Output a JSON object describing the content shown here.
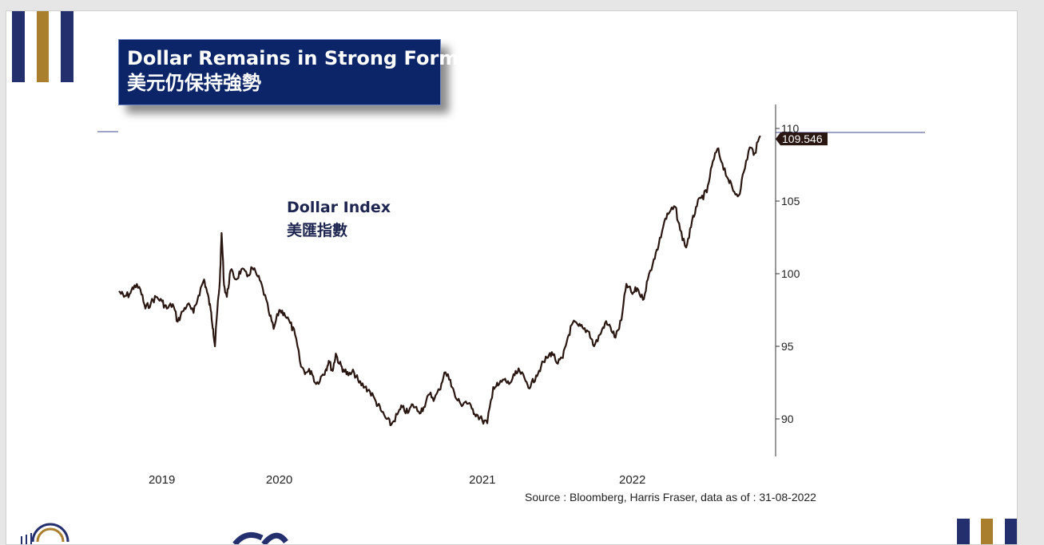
{
  "colors": {
    "navy": "#24306e",
    "gold": "#a97f2e",
    "title_bg": "#0b2568",
    "line": "#2b1712",
    "label_bg": "#2b1712",
    "text_dark": "#1d2550"
  },
  "title": {
    "en": "Dollar Remains in Strong Form",
    "zh": "美元仍保持強勢"
  },
  "source": "Source : Bloomberg, Harris Fraser, data as of : 31-08-2022",
  "logo_icon": "arch-logo-icon",
  "chart_data": {
    "type": "line",
    "series": [
      {
        "name": "Dollar Index 美匯指數",
        "label_en": "Dollar Index",
        "label_zh": "美匯指數",
        "last_value_label": "109.546",
        "points": [
          [
            "2018-09-01",
            98.8
          ],
          [
            "2018-09-15",
            98.4
          ],
          [
            "2018-10-01",
            98.6
          ],
          [
            "2018-10-15",
            99.2
          ],
          [
            "2018-11-01",
            98.9
          ],
          [
            "2018-11-15",
            97.6
          ],
          [
            "2018-12-01",
            98.0
          ],
          [
            "2018-12-15",
            98.4
          ],
          [
            "2019-01-01",
            98.1
          ],
          [
            "2019-01-15",
            97.6
          ],
          [
            "2019-02-01",
            97.9
          ],
          [
            "2019-02-15",
            96.7
          ],
          [
            "2019-03-01",
            97.4
          ],
          [
            "2019-03-15",
            97.9
          ],
          [
            "2019-04-01",
            97.3
          ],
          [
            "2019-04-15",
            98.5
          ],
          [
            "2019-05-01",
            99.6
          ],
          [
            "2019-05-10",
            98.7
          ],
          [
            "2019-05-20",
            97.5
          ],
          [
            "2019-05-27",
            96.2
          ],
          [
            "2019-06-01",
            95.0
          ],
          [
            "2019-06-08",
            97.6
          ],
          [
            "2019-06-15",
            99.5
          ],
          [
            "2019-06-20",
            102.8
          ],
          [
            "2019-06-27",
            99.2
          ],
          [
            "2019-07-05",
            98.4
          ],
          [
            "2019-07-15",
            100.2
          ],
          [
            "2019-08-01",
            99.6
          ],
          [
            "2019-08-15",
            100.3
          ],
          [
            "2019-09-01",
            99.8
          ],
          [
            "2019-09-15",
            100.4
          ],
          [
            "2019-10-01",
            99.8
          ],
          [
            "2019-10-15",
            99.0
          ],
          [
            "2019-11-01",
            97.4
          ],
          [
            "2019-11-15",
            96.2
          ],
          [
            "2019-12-01",
            97.5
          ],
          [
            "2019-12-15",
            97.3
          ],
          [
            "2020-01-01",
            96.6
          ],
          [
            "2020-01-15",
            95.8
          ],
          [
            "2020-02-01",
            93.6
          ],
          [
            "2020-02-15",
            93.2
          ],
          [
            "2020-03-01",
            93.3
          ],
          [
            "2020-03-15",
            92.4
          ],
          [
            "2020-04-01",
            93.0
          ],
          [
            "2020-04-10",
            93.3
          ],
          [
            "2020-04-20",
            94.0
          ],
          [
            "2020-05-01",
            93.3
          ],
          [
            "2020-05-10",
            94.5
          ],
          [
            "2020-05-20",
            93.8
          ],
          [
            "2020-06-01",
            93.4
          ],
          [
            "2020-06-15",
            93.0
          ],
          [
            "2020-07-01",
            93.2
          ],
          [
            "2020-07-15",
            92.5
          ],
          [
            "2020-08-01",
            92.2
          ],
          [
            "2020-08-15",
            91.9
          ],
          [
            "2020-09-01",
            91.2
          ],
          [
            "2020-09-15",
            90.6
          ],
          [
            "2020-10-01",
            90.0
          ],
          [
            "2020-10-15",
            89.6
          ],
          [
            "2020-11-01",
            90.3
          ],
          [
            "2020-11-15",
            90.8
          ],
          [
            "2020-12-01",
            90.4
          ],
          [
            "2020-12-15",
            91.0
          ],
          [
            "2021-01-01",
            90.5
          ],
          [
            "2021-01-15",
            90.8
          ],
          [
            "2021-02-01",
            91.7
          ],
          [
            "2021-02-15",
            91.4
          ],
          [
            "2021-03-01",
            92.0
          ],
          [
            "2021-03-15",
            93.2
          ],
          [
            "2021-04-01",
            92.7
          ],
          [
            "2021-04-15",
            91.5
          ],
          [
            "2021-05-01",
            91.0
          ],
          [
            "2021-05-15",
            91.2
          ],
          [
            "2021-06-01",
            90.7
          ],
          [
            "2021-06-15",
            90.3
          ],
          [
            "2021-07-01",
            89.9
          ],
          [
            "2021-07-15",
            89.7
          ],
          [
            "2021-08-01",
            92.2
          ],
          [
            "2021-08-15",
            92.3
          ],
          [
            "2021-09-01",
            92.7
          ],
          [
            "2021-09-15",
            92.4
          ],
          [
            "2021-10-01",
            93.0
          ],
          [
            "2021-10-15",
            93.3
          ],
          [
            "2021-11-01",
            92.6
          ],
          [
            "2021-11-15",
            92.2
          ],
          [
            "2021-12-01",
            93.0
          ],
          [
            "2021-12-15",
            93.6
          ],
          [
            "2022-01-01",
            94.2
          ],
          [
            "2022-01-15",
            94.6
          ],
          [
            "2022-02-01",
            93.8
          ],
          [
            "2022-02-15",
            94.2
          ],
          [
            "2022-03-01",
            95.6
          ],
          [
            "2022-03-15",
            96.6
          ],
          [
            "2022-04-01",
            96.4
          ],
          [
            "2022-04-15",
            96.2
          ],
          [
            "2022-05-01",
            96.0
          ],
          [
            "2022-05-15",
            95.0
          ],
          [
            "2022-06-01",
            95.8
          ],
          [
            "2022-06-15",
            96.6
          ],
          [
            "2022-07-01",
            96.3
          ],
          [
            "2022-07-15",
            95.6
          ],
          [
            "2022-08-01",
            96.8
          ],
          [
            "2022-08-15",
            99.3
          ],
          [
            "2022-09-01",
            98.6
          ],
          [
            "2022-09-15",
            99.0
          ],
          [
            "2022-10-01",
            98.2
          ],
          [
            "2022-10-15",
            99.6
          ],
          [
            "2022-11-01",
            101.0
          ],
          [
            "2022-11-15",
            102.0
          ],
          [
            "2022-12-01",
            103.6
          ],
          [
            "2022-12-15",
            104.2
          ],
          [
            "2023-01-01",
            104.6
          ],
          [
            "2023-01-15",
            103.0
          ],
          [
            "2023-02-01",
            101.8
          ],
          [
            "2023-02-15",
            103.2
          ],
          [
            "2023-03-01",
            104.6
          ],
          [
            "2023-03-15",
            105.2
          ],
          [
            "2023-04-01",
            105.6
          ],
          [
            "2023-04-15",
            107.4
          ],
          [
            "2023-05-01",
            108.6
          ],
          [
            "2023-05-15",
            107.6
          ],
          [
            "2023-06-01",
            106.5
          ],
          [
            "2023-06-15",
            105.7
          ],
          [
            "2023-07-01",
            105.4
          ],
          [
            "2023-07-15",
            107.0
          ],
          [
            "2023-08-01",
            108.7
          ],
          [
            "2023-08-15",
            108.3
          ],
          [
            "2023-08-31",
            109.5
          ]
        ]
      }
    ],
    "x_tick_labels": [
      "2019",
      "2020",
      "2021",
      "2022"
    ],
    "x_tick_positions": [
      "2019-01-01",
      "2019-12-01",
      "2021-07-01",
      "2022-09-01"
    ],
    "y_ticks": [
      90,
      95,
      100,
      105,
      110
    ],
    "y_tick_labels": [
      "90",
      "95",
      "100",
      "105",
      "110"
    ],
    "ylim": [
      87.5,
      111.5
    ],
    "xlim": [
      "2018-09-01",
      "2023-09-05"
    ],
    "y_axis_position": "right",
    "grid": false,
    "legend": "none"
  }
}
